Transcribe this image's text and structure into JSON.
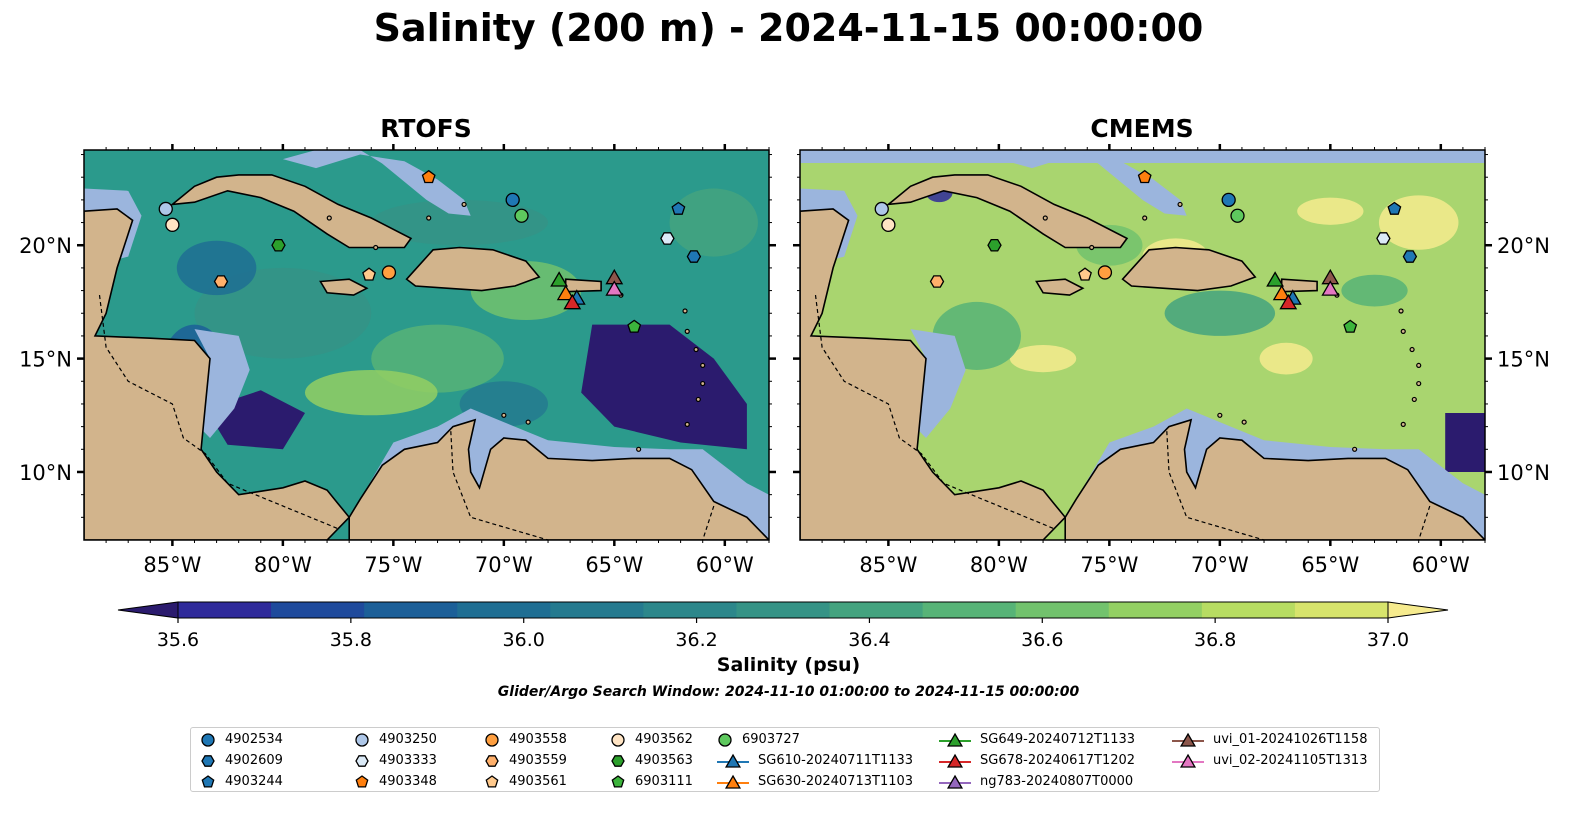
{
  "title": "Salinity (200 m) - 2024-11-15 00:00:00",
  "panels": [
    {
      "title": "RTOFS",
      "ocean_color": "#2b9a8c"
    },
    {
      "title": "CMEMS",
      "ocean_color": "#a9d56f"
    }
  ],
  "x_ticks": [
    "85°W",
    "80°W",
    "75°W",
    "70°W",
    "65°W",
    "60°W"
  ],
  "y_ticks": [
    "20°N",
    "15°N",
    "10°N"
  ],
  "colorbar": {
    "label": "Salinity (psu)",
    "ticks": [
      "35.6",
      "35.8",
      "36.0",
      "36.2",
      "36.4",
      "36.6",
      "36.8",
      "37.0"
    ],
    "colors": [
      "#2b1b6e",
      "#2f2a9a",
      "#1f4a9c",
      "#1c5f98",
      "#1f6e93",
      "#257a8f",
      "#2c878b",
      "#359386",
      "#44a37f",
      "#57b377",
      "#72c26d",
      "#93cf63",
      "#b7dc62",
      "#d7e46c",
      "#f6eb8e"
    ]
  },
  "search_window": "Glider/Argo Search Window: 2024-11-10 01:00:00 to 2024-11-15 00:00:00",
  "colors": {
    "land": "#d2b48c",
    "shelf": "#9bb5dd"
  },
  "legend": [
    {
      "label": "4902534",
      "marker": "circle",
      "color": "#1f77b4"
    },
    {
      "label": "4902609",
      "marker": "hexagon",
      "color": "#1f77b4"
    },
    {
      "label": "4903244",
      "marker": "pentagon",
      "color": "#1f77b4"
    },
    {
      "label": "4903250",
      "marker": "circle",
      "color": "#aec7e8"
    },
    {
      "label": "4903333",
      "marker": "hexagon",
      "color": "#dbeaf7"
    },
    {
      "label": "4903348",
      "marker": "pentagon",
      "color": "#ff7f0e"
    },
    {
      "label": "4903558",
      "marker": "circle",
      "color": "#ff9f40"
    },
    {
      "label": "4903559",
      "marker": "hexagon",
      "color": "#ffb06b"
    },
    {
      "label": "4903561",
      "marker": "pentagon",
      "color": "#ffc98c"
    },
    {
      "label": "4903562",
      "marker": "circle",
      "color": "#ffe4c4"
    },
    {
      "label": "4903563",
      "marker": "hexagon",
      "color": "#2ca02c"
    },
    {
      "label": "6903111",
      "marker": "pentagon",
      "color": "#3cb43c"
    },
    {
      "label": "6903727",
      "marker": "circle",
      "color": "#5ec95e"
    },
    {
      "label": "SG610-20240711T1133",
      "marker": "triangle",
      "color": "#1f77b4"
    },
    {
      "label": "SG630-20240713T1103",
      "marker": "triangle",
      "color": "#ff7f0e"
    },
    {
      "label": "SG649-20240712T1133",
      "marker": "triangle",
      "color": "#2ca02c"
    },
    {
      "label": "SG678-20240617T1202",
      "marker": "triangle",
      "color": "#d62728"
    },
    {
      "label": "ng783-20240807T0000",
      "marker": "triangle",
      "color": "#9467bd"
    },
    {
      "label": "uvi_01-20241026T1158",
      "marker": "triangle",
      "color": "#8c564b"
    },
    {
      "label": "uvi_02-20241105T1313",
      "marker": "triangle",
      "color": "#e377c2"
    }
  ],
  "observations": [
    {
      "id": "4903250",
      "lon": -85.3,
      "lat": 21.6,
      "marker": "circle",
      "color": "#aec7e8"
    },
    {
      "id": "4903562",
      "lon": -85.0,
      "lat": 20.9,
      "marker": "circle",
      "color": "#ffe4c4"
    },
    {
      "id": "4903559",
      "lon": -82.8,
      "lat": 18.4,
      "marker": "hexagon",
      "color": "#ffb06b"
    },
    {
      "id": "4903563",
      "lon": -80.2,
      "lat": 20.0,
      "marker": "hexagon",
      "color": "#2ca02c"
    },
    {
      "id": "4903561",
      "lon": -76.1,
      "lat": 18.7,
      "marker": "pentagon",
      "color": "#ffc98c"
    },
    {
      "id": "4903558",
      "lon": -75.2,
      "lat": 18.8,
      "marker": "circle",
      "color": "#ff9f40"
    },
    {
      "id": "4903348",
      "lon": -73.4,
      "lat": 23.0,
      "marker": "pentagon",
      "color": "#ff7f0e"
    },
    {
      "id": "4902534",
      "lon": -69.6,
      "lat": 22.0,
      "marker": "circle",
      "color": "#1f77b4"
    },
    {
      "id": "6903727",
      "lon": -69.2,
      "lat": 21.3,
      "marker": "circle",
      "color": "#5ec95e"
    },
    {
      "id": "4903244",
      "lon": -62.1,
      "lat": 21.6,
      "marker": "pentagon",
      "color": "#1f77b4"
    },
    {
      "id": "4903333",
      "lon": -62.6,
      "lat": 20.3,
      "marker": "hexagon",
      "color": "#dbeaf7"
    },
    {
      "id": "4902609",
      "lon": -61.4,
      "lat": 19.5,
      "marker": "hexagon",
      "color": "#1f77b4"
    },
    {
      "id": "6903111",
      "lon": -64.1,
      "lat": 16.4,
      "marker": "pentagon",
      "color": "#3cb43c"
    },
    {
      "id": "SG649-20240712T1133",
      "lon": -67.5,
      "lat": 18.5,
      "marker": "triangle",
      "color": "#2ca02c"
    },
    {
      "id": "SG630-20240713T1103",
      "lon": -67.2,
      "lat": 17.9,
      "marker": "triangle",
      "color": "#ff7f0e"
    },
    {
      "id": "SG610-20240711T1133",
      "lon": -66.7,
      "lat": 17.7,
      "marker": "triangle",
      "color": "#1f77b4"
    },
    {
      "id": "SG678-20240617T1202",
      "lon": -66.9,
      "lat": 17.5,
      "marker": "triangle",
      "color": "#d62728"
    },
    {
      "id": "uvi_01-20241026T1158",
      "lon": -65.0,
      "lat": 18.6,
      "marker": "triangle",
      "color": "#8c564b"
    },
    {
      "id": "uvi_02-20241105T1313",
      "lon": -65.0,
      "lat": 18.1,
      "marker": "triangle",
      "color": "#e377c2"
    }
  ]
}
